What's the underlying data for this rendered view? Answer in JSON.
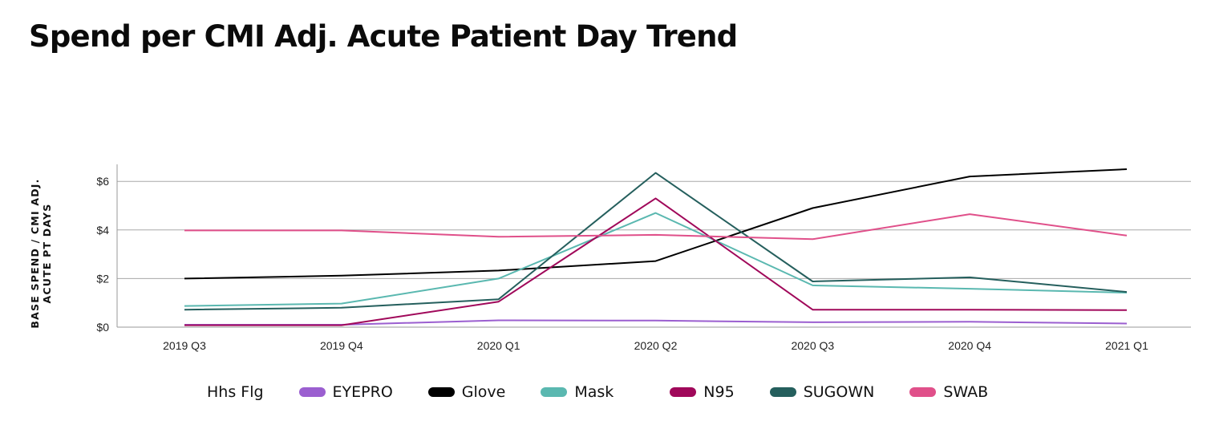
{
  "title": "Spend per CMI Adj. Acute Patient Day Trend",
  "chart_data": {
    "type": "line",
    "title": "Spend per CMI Adj. Acute Patient Day Trend",
    "xlabel": "",
    "ylabel": "BASE SPEND / CMI ADJ. ACUTE PT DAYS",
    "categories": [
      "2019 Q3",
      "2019 Q4",
      "2020 Q1",
      "2020 Q2",
      "2020 Q3",
      "2020 Q4",
      "2021 Q1"
    ],
    "yticks": [
      0,
      2,
      4,
      6
    ],
    "ytick_labels": [
      "$0",
      "$2",
      "$4",
      "$6"
    ],
    "ylim": [
      0,
      6.8
    ],
    "grid": "horizontal",
    "legend_title": "Hhs Flg",
    "legend_position": "bottom",
    "series": [
      {
        "name": "EYEPRO",
        "color": "#9b5fd0",
        "values": [
          0.1,
          0.1,
          0.28,
          0.27,
          0.2,
          0.22,
          0.15
        ]
      },
      {
        "name": "Glove",
        "color": "#000000",
        "values": [
          2.0,
          2.12,
          2.33,
          2.72,
          4.9,
          6.2,
          6.5
        ]
      },
      {
        "name": "Mask",
        "color": "#5ab8b0",
        "values": [
          0.87,
          0.97,
          2.0,
          4.7,
          1.72,
          1.58,
          1.42
        ]
      },
      {
        "name": "N95",
        "color": "#a0085a",
        "values": [
          0.08,
          0.08,
          1.05,
          5.3,
          0.72,
          0.72,
          0.7
        ]
      },
      {
        "name": "SUGOWN",
        "color": "#255f5d",
        "values": [
          0.72,
          0.8,
          1.15,
          6.35,
          1.88,
          2.05,
          1.45
        ]
      },
      {
        "name": "SWAB",
        "color": "#e0508a",
        "values": [
          3.98,
          3.98,
          3.72,
          3.8,
          3.62,
          4.65,
          3.77
        ]
      }
    ]
  }
}
